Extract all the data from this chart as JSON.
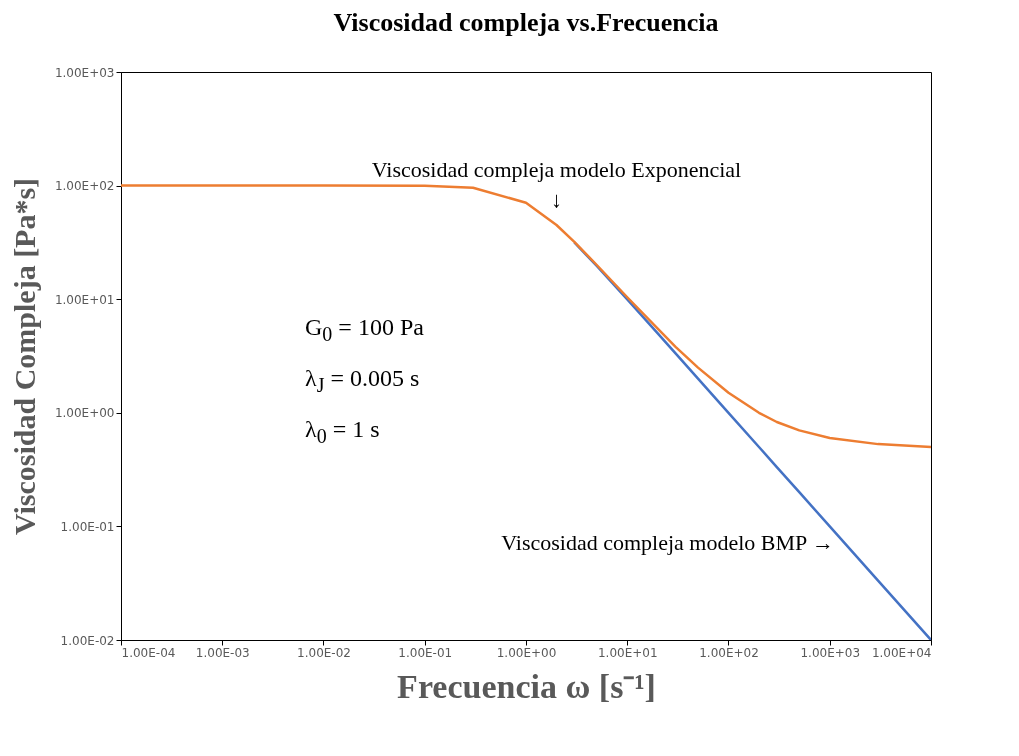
{
  "chart_data": {
    "type": "line",
    "title": "Viscosidad compleja vs.Frecuencia",
    "xlabel": "Frecuencia  ω [s⁻¹]",
    "ylabel": "Viscosidad Compleja [Pa*s]",
    "log": "xy",
    "grid": false,
    "marker": "none",
    "line_style": "solid",
    "x": [
      0.0001,
      0.001,
      0.01,
      0.1,
      0.3,
      1,
      2,
      3,
      5,
      10,
      20,
      30,
      50,
      100,
      200,
      300,
      500,
      1000,
      3000,
      10000
    ],
    "series": [
      {
        "color": "#4472c4",
        "values": [
          null,
          null,
          null,
          null,
          null,
          null,
          null,
          31.6,
          19.6,
          9.95,
          5.0,
          3.33,
          2.0,
          1.0,
          0.5,
          0.333,
          0.2,
          0.1,
          0.0333,
          0.01
        ]
      },
      {
        "color": "#ed7d31",
        "values": [
          100,
          100,
          100,
          99.5,
          95.8,
          70.7,
          45,
          32,
          20,
          10.4,
          5.5,
          3.8,
          2.5,
          1.5,
          1.0,
          0.83,
          0.7,
          0.6,
          0.53,
          0.5
        ]
      }
    ],
    "xlim": [
      0.0001,
      10000
    ],
    "ylim": [
      0.01,
      1000
    ],
    "xticks": [
      {
        "value": 0.0001,
        "label": "1.00E-04"
      },
      {
        "value": 0.001,
        "label": "1.00E-03"
      },
      {
        "value": 0.01,
        "label": "1.00E-02"
      },
      {
        "value": 0.1,
        "label": "1.00E-01"
      },
      {
        "value": 1,
        "label": "1.00E+00"
      },
      {
        "value": 10,
        "label": "1.00E+01"
      },
      {
        "value": 100,
        "label": "1.00E+02"
      },
      {
        "value": 1000,
        "label": "1.00E+03"
      },
      {
        "value": 10000,
        "label": "1.00E+04"
      }
    ],
    "yticks": [
      {
        "value": 0.01,
        "label": "1.00E-02"
      },
      {
        "value": 0.1,
        "label": "1.00E-01"
      },
      {
        "value": 1,
        "label": "1.00E+00"
      },
      {
        "value": 10,
        "label": "1.00E+01"
      },
      {
        "value": 100,
        "label": "1.00E+02"
      },
      {
        "value": 1000,
        "label": "1.00E+03"
      }
    ],
    "annotations": [
      {
        "text": "Viscosidad compleja modelo Exponencial\n↓",
        "x": 2,
        "y": 50
      },
      "Viscosidad compleja modelo BMP →",
      "G$_{0}$ = 100 Pa",
      "λ$_{J}$ = 0.005 s",
      "λ$_{0}$ = 1 s"
    ]
  }
}
